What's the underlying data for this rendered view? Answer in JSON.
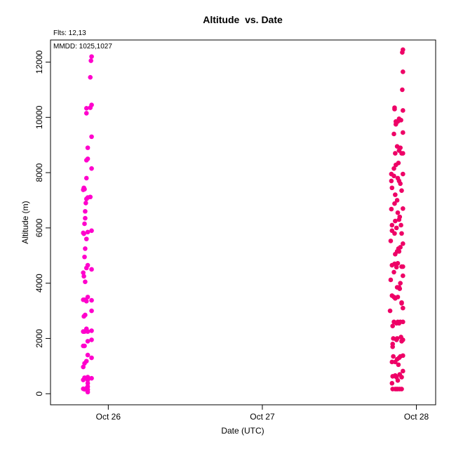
{
  "chart_data": {
    "type": "scatter",
    "title": "Altitude  vs. Date",
    "xlabel": "Date (UTC)",
    "ylabel": "Altitude (m)",
    "annotations": [
      "Flts: 12,13",
      "MMDD: 1025,1027"
    ],
    "x_ticks": [
      "Oct 26",
      "Oct 27",
      "Oct 28"
    ],
    "y_ticks": [
      0,
      2000,
      4000,
      6000,
      8000,
      10000,
      12000
    ],
    "xlim": [
      "2025-10-25T15:00",
      "2025-10-28T03:00"
    ],
    "ylim": [
      -400,
      12800
    ],
    "grid": false,
    "series": [
      {
        "color": "#ff00cc",
        "points": [
          [
            "2025-10-25T20:06",
            7380
          ],
          [
            "2025-10-25T20:12",
            7450
          ],
          [
            "2025-10-25T20:18",
            7400
          ],
          [
            "2025-10-25T20:24",
            6600
          ],
          [
            "2025-10-25T20:30",
            6900
          ],
          [
            "2025-10-25T20:36",
            7050
          ],
          [
            "2025-10-25T20:48",
            7100
          ],
          [
            "2025-10-25T21:12",
            7120
          ],
          [
            "2025-10-25T20:06",
            5820
          ],
          [
            "2025-10-25T20:12",
            5790
          ],
          [
            "2025-10-25T20:24",
            6350
          ],
          [
            "2025-10-25T20:18",
            6150
          ],
          [
            "2025-10-25T20:36",
            5600
          ],
          [
            "2025-10-25T20:48",
            5850
          ],
          [
            "2025-10-25T21:24",
            5900
          ],
          [
            "2025-10-25T20:24",
            5250
          ],
          [
            "2025-10-25T20:18",
            4950
          ],
          [
            "2025-10-25T20:06",
            4380
          ],
          [
            "2025-10-25T20:12",
            4250
          ],
          [
            "2025-10-25T20:24",
            4050
          ],
          [
            "2025-10-25T20:36",
            4550
          ],
          [
            "2025-10-25T20:48",
            4650
          ],
          [
            "2025-10-25T21:24",
            4500
          ],
          [
            "2025-10-25T20:06",
            3400
          ],
          [
            "2025-10-25T20:18",
            3400
          ],
          [
            "2025-10-25T20:36",
            3350
          ],
          [
            "2025-10-25T20:48",
            3500
          ],
          [
            "2025-10-25T21:24",
            3380
          ],
          [
            "2025-10-25T20:12",
            2800
          ],
          [
            "2025-10-25T20:24",
            2850
          ],
          [
            "2025-10-25T21:24",
            3000
          ],
          [
            "2025-10-25T20:06",
            2250
          ],
          [
            "2025-10-25T20:18",
            2250
          ],
          [
            "2025-10-25T20:36",
            2350
          ],
          [
            "2025-10-25T20:48",
            2250
          ],
          [
            "2025-10-25T21:24",
            2280
          ],
          [
            "2025-10-25T20:06",
            1730
          ],
          [
            "2025-10-25T20:18",
            1730
          ],
          [
            "2025-10-25T20:48",
            1900
          ],
          [
            "2025-10-25T21:24",
            1950
          ],
          [
            "2025-10-25T20:06",
            970
          ],
          [
            "2025-10-25T20:18",
            1100
          ],
          [
            "2025-10-25T20:36",
            1180
          ],
          [
            "2025-10-25T20:48",
            1400
          ],
          [
            "2025-10-25T21:24",
            1300
          ],
          [
            "2025-10-25T20:06",
            500
          ],
          [
            "2025-10-25T20:18",
            580
          ],
          [
            "2025-10-25T20:48",
            600
          ],
          [
            "2025-10-25T20:48",
            500
          ],
          [
            "2025-10-25T20:48",
            380
          ],
          [
            "2025-10-25T20:48",
            260
          ],
          [
            "2025-10-25T20:48",
            150
          ],
          [
            "2025-10-25T20:48",
            60
          ],
          [
            "2025-10-25T21:24",
            560
          ],
          [
            "2025-10-25T20:06",
            180
          ],
          [
            "2025-10-25T20:18",
            160
          ],
          [
            "2025-10-25T20:36",
            200
          ],
          [
            "2025-10-25T20:48",
            8500
          ],
          [
            "2025-10-25T20:36",
            8450
          ],
          [
            "2025-10-25T20:48",
            8900
          ],
          [
            "2025-10-25T21:24",
            8150
          ],
          [
            "2025-10-25T21:24",
            9300
          ],
          [
            "2025-10-25T20:36",
            10150
          ],
          [
            "2025-10-25T20:36",
            10330
          ],
          [
            "2025-10-25T21:12",
            10350
          ],
          [
            "2025-10-25T21:24",
            10450
          ],
          [
            "2025-10-25T21:12",
            11450
          ],
          [
            "2025-10-25T21:18",
            12050
          ],
          [
            "2025-10-25T21:24",
            12200
          ],
          [
            "2025-10-25T20:36",
            7800
          ]
        ]
      },
      {
        "color": "#ee0066",
        "points": [
          [
            "2025-10-27T19:54",
            3000
          ],
          [
            "2025-10-27T20:00",
            4120
          ],
          [
            "2025-10-27T20:00",
            5530
          ],
          [
            "2025-10-27T20:06",
            6680
          ],
          [
            "2025-10-27T20:06",
            7700
          ],
          [
            "2025-10-27T20:06",
            7950
          ],
          [
            "2025-10-27T20:12",
            7450
          ],
          [
            "2025-10-27T20:12",
            6100
          ],
          [
            "2025-10-27T20:12",
            5900
          ],
          [
            "2025-10-27T20:12",
            4650
          ],
          [
            "2025-10-27T20:12",
            3550
          ],
          [
            "2025-10-27T20:18",
            2450
          ],
          [
            "2025-10-27T20:18",
            1800
          ],
          [
            "2025-10-27T20:18",
            1700
          ],
          [
            "2025-10-27T20:12",
            1150
          ],
          [
            "2025-10-27T20:18",
            630
          ],
          [
            "2025-10-27T20:12",
            380
          ],
          [
            "2025-10-27T20:18",
            170
          ],
          [
            "2025-10-27T20:24",
            1350
          ],
          [
            "2025-10-27T20:24",
            2000
          ],
          [
            "2025-10-27T20:30",
            2600
          ],
          [
            "2025-10-27T20:30",
            3500
          ],
          [
            "2025-10-27T20:30",
            4400
          ],
          [
            "2025-10-27T20:36",
            4700
          ],
          [
            "2025-10-27T20:36",
            5800
          ],
          [
            "2025-10-27T20:36",
            6880
          ],
          [
            "2025-10-27T20:30",
            7880
          ],
          [
            "2025-10-27T20:30",
            8150
          ],
          [
            "2025-10-27T20:30",
            9400
          ],
          [
            "2025-10-27T20:36",
            10350
          ],
          [
            "2025-10-27T20:36",
            10300
          ],
          [
            "2025-10-27T20:42",
            8700
          ],
          [
            "2025-10-27T20:42",
            7200
          ],
          [
            "2025-10-27T20:42",
            6250
          ],
          [
            "2025-10-27T20:42",
            5050
          ],
          [
            "2025-10-27T20:42",
            3450
          ],
          [
            "2025-10-27T20:42",
            1150
          ],
          [
            "2025-10-27T20:42",
            660
          ],
          [
            "2025-10-27T20:42",
            170
          ],
          [
            "2025-10-27T20:48",
            9750
          ],
          [
            "2025-10-27T20:48",
            9850
          ],
          [
            "2025-10-27T20:48",
            8280
          ],
          [
            "2025-10-27T20:54",
            6000
          ],
          [
            "2025-10-27T20:54",
            4580
          ],
          [
            "2025-10-27T20:54",
            1950
          ],
          [
            "2025-10-27T20:54",
            2550
          ],
          [
            "2025-10-27T20:54",
            170
          ],
          [
            "2025-10-27T20:54",
            600
          ],
          [
            "2025-10-27T21:00",
            8950
          ],
          [
            "2025-10-27T21:00",
            7000
          ],
          [
            "2025-10-27T21:00",
            5150
          ],
          [
            "2025-10-27T21:00",
            3850
          ],
          [
            "2025-10-27T21:00",
            2000
          ],
          [
            "2025-10-27T21:00",
            1250
          ],
          [
            "2025-10-27T21:06",
            9850
          ],
          [
            "2025-10-27T21:06",
            7800
          ],
          [
            "2025-10-27T21:06",
            6550
          ],
          [
            "2025-10-27T21:06",
            4720
          ],
          [
            "2025-10-27T21:06",
            3500
          ],
          [
            "2025-10-27T21:06",
            2600
          ],
          [
            "2025-10-27T21:06",
            480
          ],
          [
            "2025-10-27T21:06",
            170
          ],
          [
            "2025-10-27T21:12",
            8350
          ],
          [
            "2025-10-27T21:12",
            5250
          ],
          [
            "2025-10-27T21:12",
            1050
          ],
          [
            "2025-10-27T21:18",
            9950
          ],
          [
            "2025-10-27T21:18",
            8800
          ],
          [
            "2025-10-27T21:18",
            7700
          ],
          [
            "2025-10-27T21:18",
            6300
          ],
          [
            "2025-10-27T21:18",
            5150
          ],
          [
            "2025-10-27T21:18",
            3850
          ],
          [
            "2025-10-27T21:18",
            2550
          ],
          [
            "2025-10-27T21:18",
            1300
          ],
          [
            "2025-10-27T21:24",
            700
          ],
          [
            "2025-10-27T21:24",
            170
          ],
          [
            "2025-10-27T21:24",
            3800
          ],
          [
            "2025-10-27T21:24",
            6400
          ],
          [
            "2025-10-27T21:30",
            8900
          ],
          [
            "2025-10-27T21:30",
            9900
          ],
          [
            "2025-10-27T21:30",
            7600
          ],
          [
            "2025-10-27T21:30",
            5300
          ],
          [
            "2025-10-27T21:30",
            4000
          ],
          [
            "2025-10-27T21:30",
            2600
          ],
          [
            "2025-10-27T21:30",
            1350
          ],
          [
            "2025-10-27T21:36",
            6100
          ],
          [
            "2025-10-27T21:36",
            2050
          ],
          [
            "2025-10-27T21:42",
            8700
          ],
          [
            "2025-10-27T21:42",
            7350
          ],
          [
            "2025-10-27T21:42",
            5800
          ],
          [
            "2025-10-27T21:42",
            4600
          ],
          [
            "2025-10-27T21:42",
            3300
          ],
          [
            "2025-10-27T21:42",
            1900
          ],
          [
            "2025-10-27T21:42",
            600
          ],
          [
            "2025-10-27T21:42",
            170
          ],
          [
            "2025-10-27T21:36",
            9900
          ],
          [
            "2025-10-27T21:48",
            11000
          ],
          [
            "2025-10-27T21:48",
            12350
          ],
          [
            "2025-10-27T21:54",
            12450
          ],
          [
            "2025-10-27T21:54",
            11650
          ],
          [
            "2025-10-27T21:54",
            10250
          ],
          [
            "2025-10-27T21:54",
            9450
          ],
          [
            "2025-10-27T21:54",
            8700
          ],
          [
            "2025-10-27T21:54",
            7950
          ],
          [
            "2025-10-27T21:54",
            6700
          ],
          [
            "2025-10-27T21:54",
            5430
          ],
          [
            "2025-10-27T21:54",
            4600
          ],
          [
            "2025-10-27T21:54",
            4270
          ],
          [
            "2025-10-27T21:54",
            3100
          ],
          [
            "2025-10-27T21:54",
            2600
          ],
          [
            "2025-10-27T21:54",
            1950
          ],
          [
            "2025-10-27T21:54",
            1380
          ],
          [
            "2025-10-27T21:54",
            820
          ],
          [
            "2025-10-27T21:42",
            3270
          ]
        ]
      }
    ]
  }
}
